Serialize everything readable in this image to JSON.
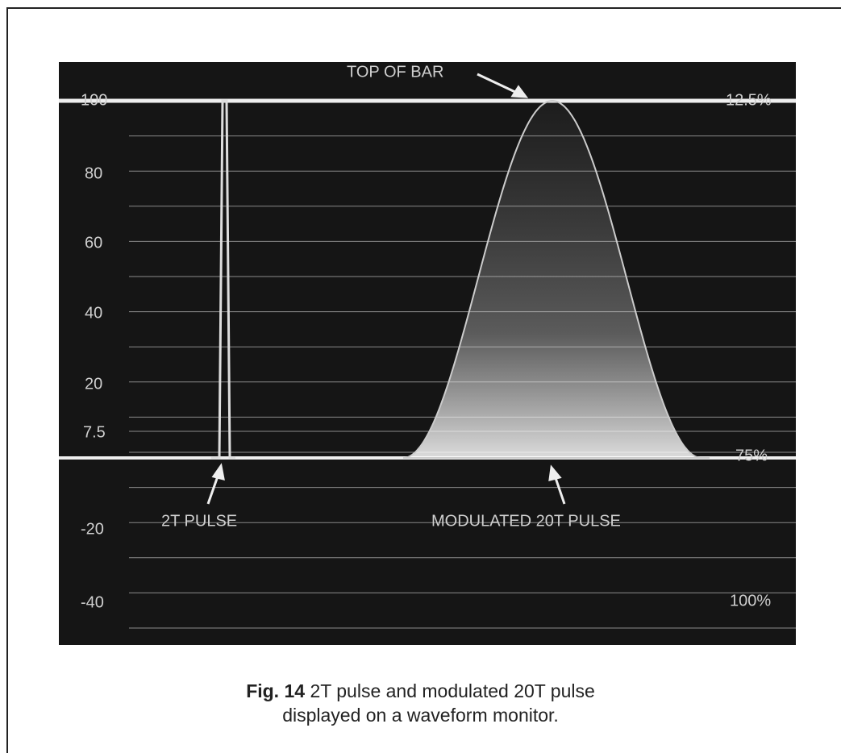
{
  "figure": {
    "graticule_labels_left": [
      "100",
      "80",
      "60",
      "40",
      "20",
      "7.5",
      "-20",
      "-40"
    ],
    "graticule_labels_right": [
      "12.5%",
      "75%",
      "100%"
    ],
    "annotations": [
      "TOP OF BAR",
      "2T PULSE",
      "MODULATED 20T PULSE"
    ]
  },
  "caption": {
    "label": "Fig. 14",
    "text_line_1": "2T pulse and modulated 20T pulse",
    "text_line_2": "displayed on a waveform monitor."
  }
}
